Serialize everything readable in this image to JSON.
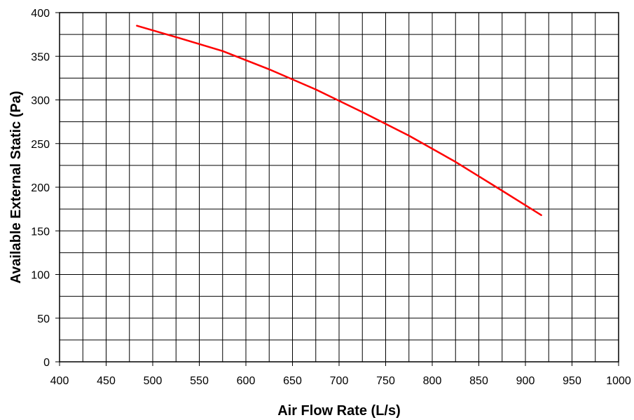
{
  "chart_data": {
    "type": "line",
    "title": "",
    "xlabel": "Air Flow Rate (L/s)",
    "ylabel": "Available External Static (Pa)",
    "xlim": [
      400,
      1000
    ],
    "ylim": [
      0,
      400
    ],
    "x_ticks": [
      400,
      450,
      500,
      550,
      600,
      650,
      700,
      750,
      800,
      850,
      900,
      950,
      1000
    ],
    "y_ticks": [
      0,
      50,
      100,
      150,
      200,
      250,
      300,
      350,
      400
    ],
    "x_minor_step": 25,
    "y_minor_step": 25,
    "grid": true,
    "legend": "none",
    "series": [
      {
        "color": "#ff0000",
        "x": [
          483,
          525,
          575,
          625,
          675,
          725,
          775,
          825,
          875,
          917
        ],
        "y": [
          385,
          372,
          356,
          335,
          312,
          286,
          259,
          229,
          196,
          168
        ]
      }
    ]
  }
}
